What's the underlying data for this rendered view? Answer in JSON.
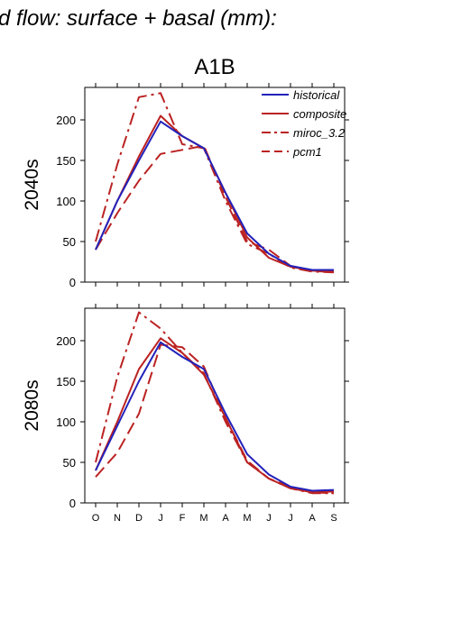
{
  "page_title": "d flow: surface + basal (mm):",
  "scenario_title": "A1B",
  "colors": {
    "historical": "#2222bb",
    "projections": "#bb2222"
  },
  "chart_data": [
    {
      "type": "line",
      "panel": "2040s",
      "ylabel": "2040s",
      "x": [
        "O",
        "N",
        "D",
        "J",
        "F",
        "M",
        "A",
        "M",
        "J",
        "J",
        "A",
        "S"
      ],
      "ylim": [
        0,
        240
      ],
      "yticks": [
        0,
        50,
        100,
        150,
        200
      ],
      "legend": "top-right",
      "series": [
        {
          "name": "historical",
          "style": "solid",
          "color": "#2222bb",
          "values": [
            40,
            100,
            150,
            198,
            180,
            165,
            110,
            60,
            35,
            20,
            15,
            15
          ]
        },
        {
          "name": "composite",
          "style": "solid",
          "color": "#bb2222",
          "values": [
            40,
            100,
            155,
            205,
            180,
            165,
            110,
            55,
            30,
            19,
            14,
            13
          ]
        },
        {
          "name": "miroc_3.2",
          "style": "dashdot",
          "color": "#bb2222",
          "values": [
            50,
            145,
            228,
            233,
            170,
            165,
            100,
            47,
            35,
            18,
            13,
            12
          ]
        },
        {
          "name": "pcm1",
          "style": "dashed",
          "color": "#bb2222",
          "values": [
            40,
            85,
            125,
            158,
            163,
            168,
            105,
            50,
            40,
            20,
            14,
            12
          ]
        }
      ]
    },
    {
      "type": "line",
      "panel": "2080s",
      "ylabel": "2080s",
      "x": [
        "O",
        "N",
        "D",
        "J",
        "F",
        "M",
        "A",
        "M",
        "J",
        "J",
        "A",
        "S"
      ],
      "ylim": [
        0,
        240
      ],
      "yticks": [
        0,
        50,
        100,
        150,
        200
      ],
      "series": [
        {
          "name": "historical",
          "style": "solid",
          "color": "#2222bb",
          "values": [
            40,
            95,
            150,
            198,
            180,
            165,
            110,
            60,
            35,
            20,
            15,
            16
          ]
        },
        {
          "name": "composite",
          "style": "solid",
          "color": "#bb2222",
          "values": [
            40,
            100,
            165,
            203,
            185,
            158,
            105,
            50,
            30,
            18,
            13,
            14
          ]
        },
        {
          "name": "miroc_3.2",
          "style": "dashdot",
          "color": "#bb2222",
          "values": [
            50,
            155,
            235,
            215,
            185,
            160,
            100,
            50,
            30,
            18,
            12,
            12
          ]
        },
        {
          "name": "pcm1",
          "style": "dashed",
          "color": "#bb2222",
          "values": [
            32,
            62,
            110,
            195,
            192,
            168,
            105,
            52,
            30,
            20,
            13,
            12
          ]
        }
      ]
    }
  ]
}
